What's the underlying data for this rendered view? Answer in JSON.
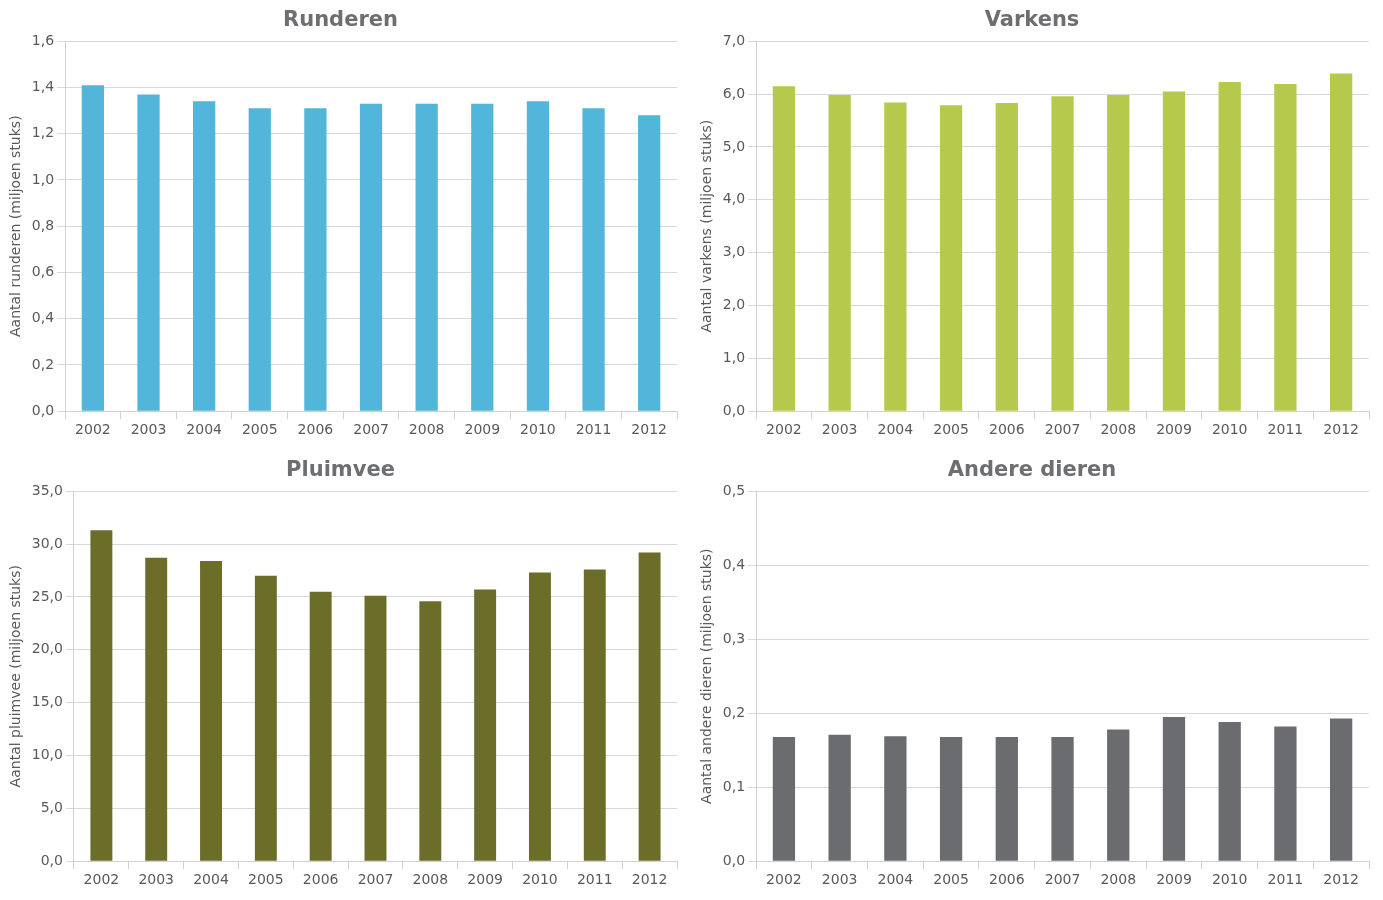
{
  "chart_data": [
    {
      "type": "bar",
      "title": "Runderen",
      "ylabel": "Aantal runderen (miljoen stuks)",
      "categories": [
        "2002",
        "2003",
        "2004",
        "2005",
        "2006",
        "2007",
        "2008",
        "2009",
        "2010",
        "2011",
        "2012"
      ],
      "values": [
        1.41,
        1.37,
        1.34,
        1.31,
        1.31,
        1.33,
        1.33,
        1.33,
        1.34,
        1.31,
        1.28
      ],
      "color": "#52b5da",
      "ylim": [
        0,
        1.6
      ],
      "yticks": [
        {
          "value": 0,
          "label": "0,0"
        },
        {
          "value": 0.2,
          "label": "0,2"
        },
        {
          "value": 0.4,
          "label": "0,4"
        },
        {
          "value": 0.6,
          "label": "0,6"
        },
        {
          "value": 0.8,
          "label": "0,8"
        },
        {
          "value": 1,
          "label": "1,0"
        },
        {
          "value": 1.2,
          "label": "1,2"
        },
        {
          "value": 1.4,
          "label": "1,4"
        },
        {
          "value": 1.6,
          "label": "1,6"
        }
      ],
      "grid": "y"
    },
    {
      "type": "bar",
      "title": "Varkens",
      "ylabel": "Aantal varkens (miljoen stuks)",
      "categories": [
        "2002",
        "2003",
        "2004",
        "2005",
        "2006",
        "2007",
        "2008",
        "2009",
        "2010",
        "2011",
        "2012"
      ],
      "values": [
        6.15,
        5.98,
        5.84,
        5.79,
        5.83,
        5.96,
        5.98,
        6.05,
        6.23,
        6.19,
        6.39
      ],
      "color": "#b7c94d",
      "ylim": [
        0,
        7
      ],
      "yticks": [
        {
          "value": 0,
          "label": "0,0"
        },
        {
          "value": 1,
          "label": "1,0"
        },
        {
          "value": 2,
          "label": "2,0"
        },
        {
          "value": 3,
          "label": "3,0"
        },
        {
          "value": 4,
          "label": "4,0"
        },
        {
          "value": 5,
          "label": "5,0"
        },
        {
          "value": 6,
          "label": "6,0"
        },
        {
          "value": 7,
          "label": "7,0"
        }
      ],
      "grid": "y"
    },
    {
      "type": "bar",
      "title": "Pluimvee",
      "ylabel": "Aantal pluimvee (miljoen stuks)",
      "categories": [
        "2002",
        "2003",
        "2004",
        "2005",
        "2006",
        "2007",
        "2008",
        "2009",
        "2010",
        "2011",
        "2012"
      ],
      "values": [
        31.3,
        28.7,
        28.4,
        27.0,
        25.5,
        25.1,
        24.6,
        25.7,
        27.3,
        27.6,
        29.2
      ],
      "color": "#6b6d28",
      "ylim": [
        0,
        35
      ],
      "yticks": [
        {
          "value": 0,
          "label": "0,0"
        },
        {
          "value": 5,
          "label": "5,0"
        },
        {
          "value": 10,
          "label": "10,0"
        },
        {
          "value": 15,
          "label": "15,0"
        },
        {
          "value": 20,
          "label": "20,0"
        },
        {
          "value": 25,
          "label": "25,0"
        },
        {
          "value": 30,
          "label": "30,0"
        },
        {
          "value": 35,
          "label": "35,0"
        }
      ],
      "grid": "y"
    },
    {
      "type": "bar",
      "title": "Andere dieren",
      "ylabel": "Aantal andere dieren (miljoen stuks)",
      "categories": [
        "2002",
        "2003",
        "2004",
        "2005",
        "2006",
        "2007",
        "2008",
        "2009",
        "2010",
        "2011",
        "2012"
      ],
      "values": [
        0.168,
        0.171,
        0.169,
        0.168,
        0.168,
        0.168,
        0.178,
        0.195,
        0.188,
        0.182,
        0.193
      ],
      "color": "#6b6c70",
      "ylim": [
        0,
        0.5
      ],
      "yticks": [
        {
          "value": 0,
          "label": "0,0"
        },
        {
          "value": 0.1,
          "label": "0,1"
        },
        {
          "value": 0.2,
          "label": "0,2"
        },
        {
          "value": 0.3,
          "label": "0,3"
        },
        {
          "value": 0.4,
          "label": "0,4"
        },
        {
          "value": 0.5,
          "label": "0,5"
        }
      ],
      "grid": "y"
    }
  ]
}
